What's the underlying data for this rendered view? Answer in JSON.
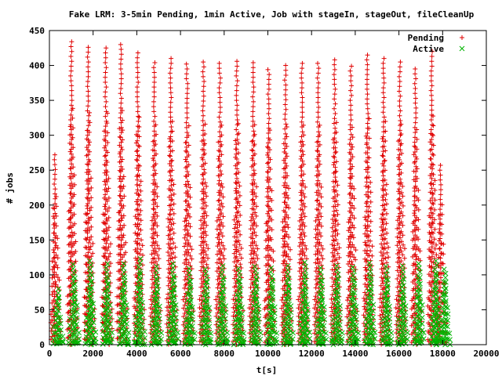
{
  "chart_data": {
    "type": "scatter",
    "title": "Fake LRM: 3-5min Pending, 1min Active, Job with stageIn, stageOut, fileCleanUp",
    "xlabel": "t[s]",
    "ylabel": "# jobs",
    "xlim": [
      0,
      20000
    ],
    "ylim": [
      0,
      450
    ],
    "xticks": [
      0,
      2000,
      4000,
      6000,
      8000,
      10000,
      12000,
      14000,
      16000,
      18000,
      20000
    ],
    "yticks": [
      0,
      50,
      100,
      150,
      200,
      250,
      300,
      350,
      400,
      450
    ],
    "grid": false,
    "legend_position": "top-right",
    "cycle_start_times": [
      260,
      1010,
      1700,
      2480,
      3300,
      4000,
      4830,
      5570,
      6330,
      7040,
      7800,
      8580,
      9330,
      10040,
      10800,
      11570,
      12360,
      13020,
      13780,
      14520,
      15280,
      16040,
      16760,
      17520
    ],
    "series": [
      {
        "name": "Pending",
        "marker": "+",
        "color": "#e00000",
        "peak_values": [
          272,
          434,
          426,
          425,
          430,
          418,
          404,
          410,
          402,
          405,
          403,
          406,
          404,
          394,
          400,
          403,
          403,
          408,
          399,
          415,
          410,
          405,
          395,
          420,
          257
        ],
        "peak_times": [
          240,
          1000,
          1770,
          2580,
          3270,
          4050,
          4800,
          5550,
          6300,
          7050,
          7800,
          8580,
          9330,
          10030,
          10800,
          11560,
          12300,
          13060,
          13800,
          14560,
          15300,
          16040,
          16750,
          17500,
          17900
        ]
      },
      {
        "name": "Active",
        "marker": "x",
        "color": "#00b400",
        "peak_values": [
          80,
          115,
          120,
          116,
          116,
          123,
          112,
          116,
          109,
          108,
          113,
          109,
          112,
          110,
          113,
          118,
          110,
          113,
          111,
          117,
          112,
          113,
          116,
          120,
          108
        ],
        "peak_times": [
          380,
          1120,
          1880,
          2640,
          3400,
          4130,
          4900,
          5660,
          6420,
          7170,
          7920,
          8680,
          9440,
          10170,
          10920,
          11680,
          12440,
          13170,
          13920,
          14680,
          15440,
          16170,
          16920,
          17680,
          18100
        ]
      }
    ]
  }
}
